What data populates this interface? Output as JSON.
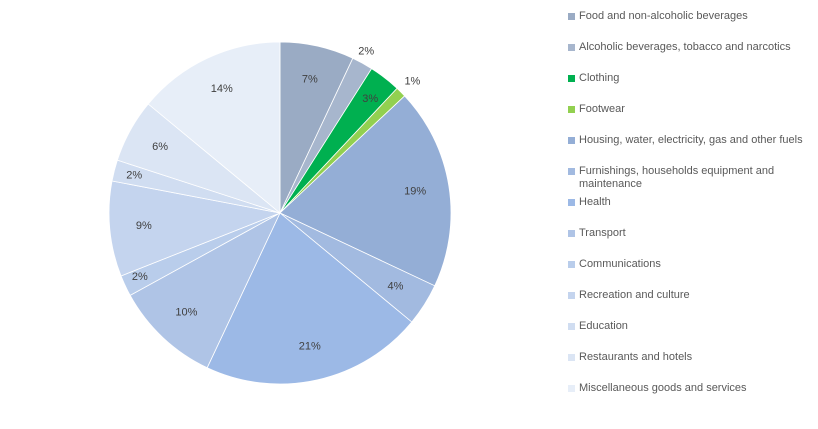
{
  "chart_data": {
    "type": "pie",
    "title": "",
    "legend_position": "right",
    "start_angle_deg": 0,
    "direction": "clockwise",
    "slices": [
      {
        "label": "Food and non-alcoholic beverages",
        "value": 7,
        "display": "7%",
        "color": "#9aabc4"
      },
      {
        "label": "Alcoholic beverages, tobacco and narcotics",
        "value": 2,
        "display": "2%",
        "color": "#a7b6cd"
      },
      {
        "label": "Clothing",
        "value": 3,
        "display": "3%",
        "color": "#00b050"
      },
      {
        "label": "Footwear",
        "value": 1,
        "display": "1%",
        "color": "#92d050"
      },
      {
        "label": "Housing, water, electricity, gas and other fuels",
        "value": 19,
        "display": "19%",
        "color": "#94aed6"
      },
      {
        "label": "Furnishings, households equipment and maintenance",
        "value": 4,
        "display": "4%",
        "color": "#a2bae0"
      },
      {
        "label": "Health",
        "value": 21,
        "display": "21%",
        "color": "#9cb9e6"
      },
      {
        "label": "Transport",
        "value": 10,
        "display": "10%",
        "color": "#afc4e6"
      },
      {
        "label": "Communications",
        "value": 2,
        "display": "2%",
        "color": "#b9cdeb"
      },
      {
        "label": "Recreation and culture",
        "value": 9,
        "display": "9%",
        "color": "#c4d4ee"
      },
      {
        "label": "Education",
        "value": 2,
        "display": "2%",
        "color": "#d0ddf1"
      },
      {
        "label": "Restaurants and hotels",
        "value": 6,
        "display": "6%",
        "color": "#dbe5f4"
      },
      {
        "label": "Miscellaneous goods and services",
        "value": 14,
        "display": "14%",
        "color": "#e7eef8"
      }
    ]
  }
}
